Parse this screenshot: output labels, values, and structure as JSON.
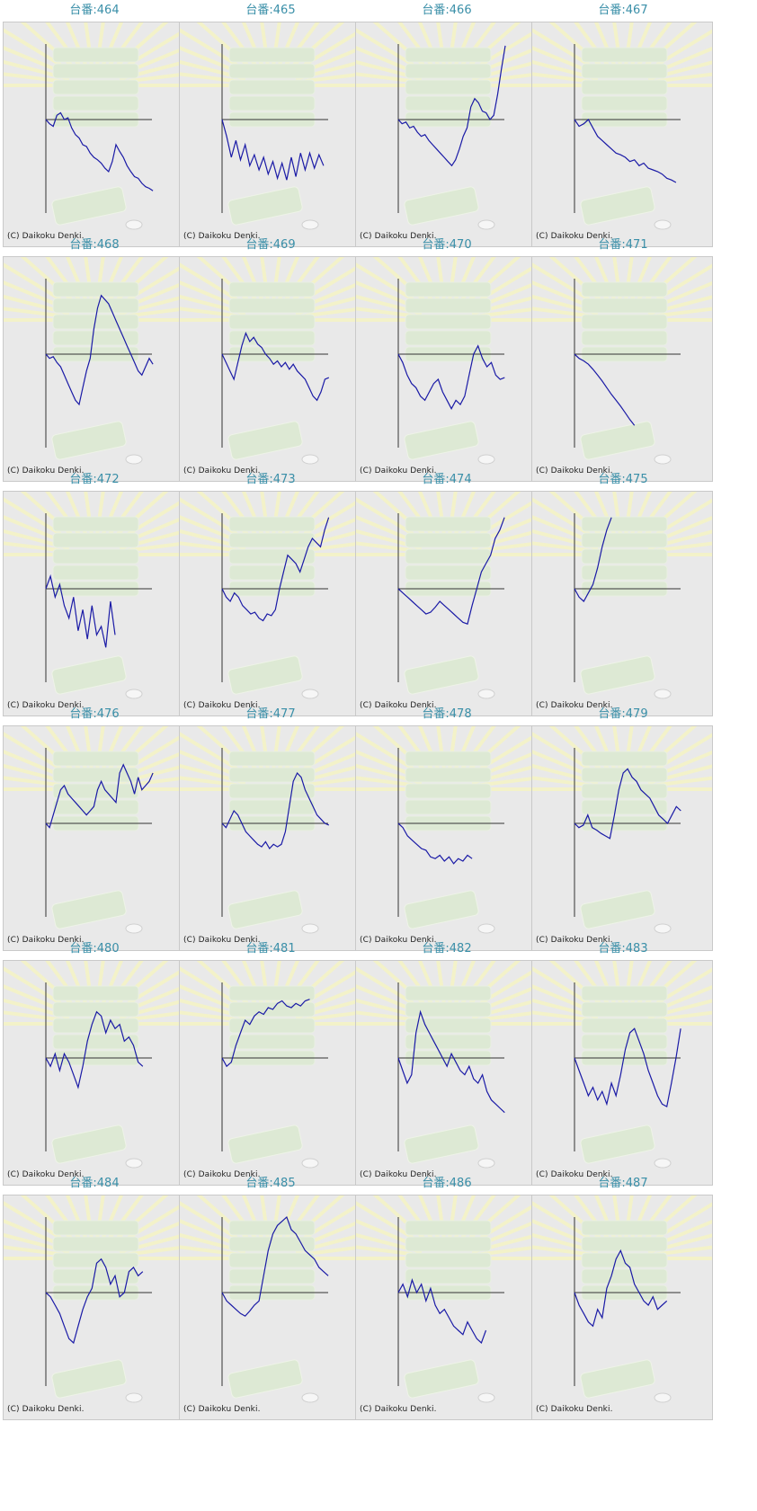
{
  "copyright": "(C) Daikoku Denki.",
  "colors": {
    "title": "#3a8fa8",
    "line": "#1a1aa6",
    "axis": "#333333",
    "background": "#e9e9e9"
  },
  "chart_data": [
    {
      "type": "line",
      "title": "台番:464",
      "ylim": [
        -90,
        90
      ],
      "values": [
        0,
        -5,
        -8,
        5,
        8,
        0,
        2,
        -10,
        -18,
        -22,
        -30,
        -32,
        -40,
        -45,
        -48,
        -52,
        -58,
        -62,
        -50,
        -30,
        -38,
        -45,
        -55,
        -62,
        -68,
        -70,
        -76,
        -80,
        -82,
        -85
      ]
    },
    {
      "type": "line",
      "title": "台番:465",
      "ylim": [
        -90,
        90
      ],
      "values": [
        0,
        -20,
        -45,
        -25,
        -48,
        -30,
        -55,
        -42,
        -60,
        -45,
        -65,
        -50,
        -70,
        -52,
        -72,
        -45,
        -68,
        -40,
        -60,
        -40,
        -58,
        -42,
        -55
      ]
    },
    {
      "type": "line",
      "title": "台番:466",
      "ylim": [
        -90,
        90
      ],
      "values": [
        0,
        -5,
        -3,
        -10,
        -8,
        -15,
        -20,
        -18,
        -25,
        -30,
        -35,
        -40,
        -45,
        -50,
        -55,
        -48,
        -35,
        -20,
        -10,
        15,
        25,
        20,
        10,
        8,
        0,
        5,
        30,
        60,
        88
      ]
    },
    {
      "type": "line",
      "title": "台番:467",
      "ylim": [
        -90,
        90
      ],
      "values": [
        0,
        -8,
        -5,
        0,
        -10,
        -20,
        -25,
        -30,
        -35,
        -40,
        -42,
        -45,
        -50,
        -48,
        -55,
        -52,
        -58,
        -60,
        -62,
        -65,
        -70,
        -72,
        -75
      ]
    },
    {
      "type": "line",
      "title": "台番:468",
      "ylim": [
        -90,
        90
      ],
      "values": [
        0,
        -5,
        -3,
        -10,
        -15,
        -25,
        -35,
        -45,
        -55,
        -60,
        -40,
        -20,
        -5,
        30,
        55,
        70,
        65,
        60,
        50,
        40,
        30,
        20,
        10,
        0,
        -10,
        -20,
        -25,
        -15,
        -5,
        -12
      ]
    },
    {
      "type": "line",
      "title": "台番:469",
      "ylim": [
        -90,
        90
      ],
      "values": [
        0,
        -10,
        -20,
        -30,
        -10,
        10,
        25,
        15,
        20,
        12,
        8,
        0,
        -5,
        -12,
        -8,
        -15,
        -10,
        -18,
        -12,
        -20,
        -25,
        -30,
        -40,
        -50,
        -55,
        -45,
        -30,
        -28
      ]
    },
    {
      "type": "line",
      "title": "台番:470",
      "ylim": [
        -90,
        90
      ],
      "values": [
        0,
        -10,
        -25,
        -35,
        -40,
        -50,
        -55,
        -45,
        -35,
        -30,
        -45,
        -55,
        -65,
        -55,
        -60,
        -50,
        -25,
        0,
        10,
        -5,
        -15,
        -10,
        -25,
        -30,
        -28
      ]
    },
    {
      "type": "line",
      "title": "台番:471",
      "ylim": [
        -90,
        90
      ],
      "values": [
        0,
        -5,
        -8,
        -12,
        -18,
        -25,
        -32,
        -40,
        -48,
        -55,
        -62,
        -70,
        -78,
        -85
      ]
    },
    {
      "type": "line",
      "title": "台番:472",
      "ylim": [
        -90,
        90
      ],
      "values": [
        0,
        15,
        -10,
        5,
        -20,
        -35,
        -10,
        -50,
        -25,
        -60,
        -20,
        -55,
        -45,
        -70,
        -15,
        -55
      ]
    },
    {
      "type": "line",
      "title": "台番:473",
      "ylim": [
        -90,
        90
      ],
      "values": [
        0,
        -10,
        -15,
        -5,
        -10,
        -20,
        -25,
        -30,
        -28,
        -35,
        -38,
        -30,
        -32,
        -25,
        0,
        20,
        40,
        35,
        30,
        20,
        35,
        50,
        60,
        55,
        50,
        70,
        85
      ]
    },
    {
      "type": "line",
      "title": "台番:474",
      "ylim": [
        -90,
        90
      ],
      "values": [
        0,
        -5,
        -10,
        -15,
        -20,
        -25,
        -30,
        -28,
        -22,
        -15,
        -20,
        -25,
        -30,
        -35,
        -40,
        -42,
        -20,
        0,
        20,
        30,
        40,
        60,
        70,
        85
      ]
    },
    {
      "type": "line",
      "title": "台番:475",
      "ylim": [
        -90,
        90
      ],
      "values": [
        0,
        -10,
        -15,
        -5,
        5,
        25,
        50,
        70,
        85
      ]
    },
    {
      "type": "line",
      "title": "台番:476",
      "ylim": [
        -90,
        90
      ],
      "values": [
        0,
        -5,
        10,
        25,
        40,
        45,
        35,
        30,
        25,
        20,
        15,
        10,
        15,
        20,
        40,
        50,
        40,
        35,
        30,
        25,
        60,
        70,
        60,
        50,
        35,
        55,
        40,
        45,
        50,
        60
      ]
    },
    {
      "type": "line",
      "title": "台番:477",
      "ylim": [
        -90,
        90
      ],
      "values": [
        0,
        -5,
        5,
        15,
        10,
        0,
        -10,
        -15,
        -20,
        -25,
        -28,
        -22,
        -30,
        -25,
        -28,
        -25,
        -10,
        20,
        50,
        60,
        55,
        40,
        30,
        20,
        10,
        5,
        0,
        -2
      ]
    },
    {
      "type": "line",
      "title": "台番:478",
      "ylim": [
        -90,
        90
      ],
      "values": [
        0,
        -5,
        -15,
        -20,
        -25,
        -30,
        -32,
        -40,
        -42,
        -38,
        -45,
        -40,
        -48,
        -42,
        -45,
        -38,
        -42
      ]
    },
    {
      "type": "line",
      "title": "台番:479",
      "ylim": [
        -90,
        90
      ],
      "values": [
        0,
        -5,
        -2,
        10,
        -5,
        -8,
        -12,
        -15,
        -18,
        10,
        40,
        60,
        65,
        55,
        50,
        40,
        35,
        30,
        20,
        10,
        5,
        0,
        10,
        20,
        15
      ]
    },
    {
      "type": "line",
      "title": "台番:480",
      "ylim": [
        -90,
        90
      ],
      "values": [
        0,
        -10,
        5,
        -15,
        5,
        -5,
        -20,
        -35,
        -10,
        20,
        40,
        55,
        50,
        30,
        45,
        35,
        40,
        20,
        25,
        15,
        -5,
        -10
      ]
    },
    {
      "type": "line",
      "title": "台番:481",
      "ylim": [
        -90,
        90
      ],
      "values": [
        0,
        -10,
        -5,
        15,
        30,
        45,
        40,
        50,
        55,
        52,
        60,
        58,
        65,
        68,
        62,
        60,
        65,
        62,
        68,
        70
      ]
    },
    {
      "type": "line",
      "title": "台番:482",
      "ylim": [
        -90,
        90
      ],
      "values": [
        0,
        -15,
        -30,
        -20,
        30,
        55,
        40,
        30,
        20,
        10,
        0,
        -10,
        5,
        -5,
        -15,
        -20,
        -10,
        -25,
        -30,
        -20,
        -40,
        -50,
        -55,
        -60,
        -65
      ]
    },
    {
      "type": "line",
      "title": "台番:483",
      "ylim": [
        -90,
        90
      ],
      "values": [
        0,
        -15,
        -30,
        -45,
        -35,
        -50,
        -40,
        -55,
        -30,
        -45,
        -20,
        10,
        30,
        35,
        20,
        5,
        -15,
        -30,
        -45,
        -55,
        -58,
        -30,
        0,
        35
      ]
    },
    {
      "type": "line",
      "title": "台番:484",
      "ylim": [
        -90,
        90
      ],
      "values": [
        0,
        -5,
        -15,
        -25,
        -40,
        -55,
        -60,
        -40,
        -20,
        -5,
        5,
        35,
        40,
        30,
        10,
        20,
        -5,
        0,
        25,
        30,
        20,
        25
      ]
    },
    {
      "type": "line",
      "title": "台番:485",
      "ylim": [
        -90,
        90
      ],
      "values": [
        0,
        -10,
        -15,
        -20,
        -25,
        -28,
        -22,
        -15,
        -10,
        20,
        50,
        70,
        80,
        85,
        90,
        75,
        70,
        60,
        50,
        45,
        40,
        30,
        25,
        20
      ]
    },
    {
      "type": "line",
      "title": "台番:486",
      "ylim": [
        -90,
        90
      ],
      "values": [
        0,
        10,
        -5,
        15,
        0,
        10,
        -10,
        5,
        -15,
        -25,
        -20,
        -30,
        -40,
        -45,
        -50,
        -35,
        -45,
        -55,
        -60,
        -45
      ]
    },
    {
      "type": "line",
      "title": "台番:487",
      "ylim": [
        -90,
        90
      ],
      "values": [
        0,
        -15,
        -25,
        -35,
        -40,
        -20,
        -30,
        5,
        20,
        40,
        50,
        35,
        30,
        10,
        0,
        -10,
        -15,
        -5,
        -20,
        -15,
        -10
      ]
    }
  ]
}
